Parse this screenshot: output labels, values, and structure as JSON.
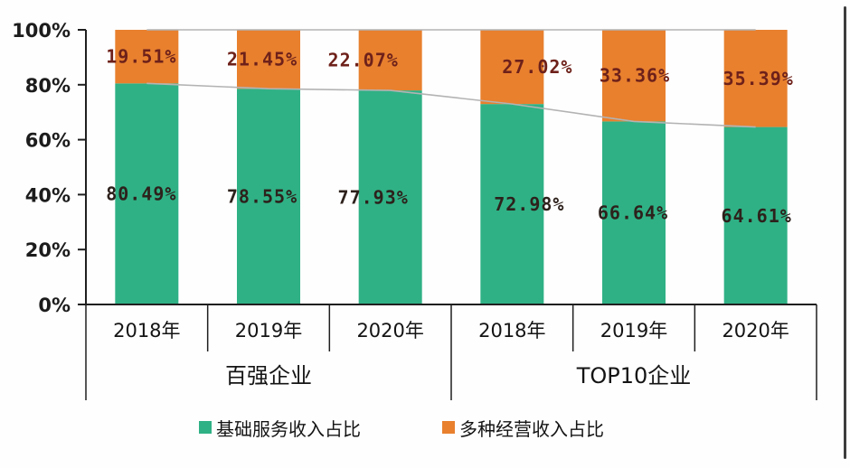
{
  "chart_data": {
    "type": "bar",
    "stacked": true,
    "percent_axis": true,
    "groups": [
      {
        "label": "百强企业",
        "categories": [
          "2018年",
          "2019年",
          "2020年"
        ]
      },
      {
        "label": "TOP10企业",
        "categories": [
          "2018年",
          "2019年",
          "2020年"
        ]
      }
    ],
    "series": [
      {
        "name": "基础服务收入占比",
        "color": "#2fb185",
        "label_color": "#2d211c",
        "values": [
          80.49,
          78.55,
          77.93,
          72.98,
          66.64,
          64.61
        ]
      },
      {
        "name": "多种经营收入占比",
        "color": "#e8802e",
        "label_color": "#6e211a",
        "values": [
          19.51,
          21.45,
          22.07,
          27.02,
          33.36,
          35.39
        ]
      }
    ],
    "data_labels": {
      "基础服务收入占比": [
        "80.49%",
        "78.55%",
        "77.93%",
        "72.98%",
        "66.64%",
        "64.61%"
      ],
      "多种经营收入占比": [
        "19.51%",
        "21.45%",
        "22.07%",
        "27.02%",
        "33.36%",
        "35.39%"
      ]
    },
    "y_axis": {
      "min": 0,
      "max": 100,
      "tick_labels": [
        "0%",
        "20%",
        "40%",
        "60%",
        "80%",
        "100%"
      ]
    },
    "connector_line_color": "#b3b3b3",
    "axis_color": "#1f1f1f",
    "legend_position": "bottom"
  },
  "legend": {
    "items": [
      {
        "label": "基础服务收入占比",
        "color": "#2fb185"
      },
      {
        "label": "多种经营收入占比",
        "color": "#e8802e"
      }
    ]
  }
}
